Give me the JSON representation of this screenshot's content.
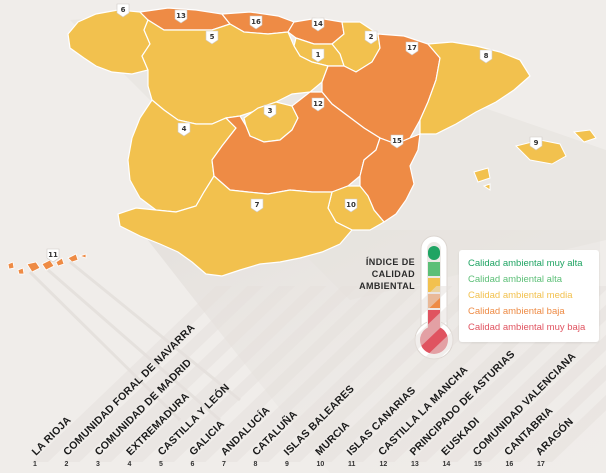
{
  "legend": {
    "title_lines": [
      "ÍNDICE DE",
      "CALIDAD",
      "AMBIENTAL"
    ],
    "items": [
      {
        "label": "Calidad ambiental muy alta",
        "color": "#1fa463"
      },
      {
        "label": "Calidad ambiental alta",
        "color": "#5cbf77"
      },
      {
        "label": "Calidad ambiental media",
        "color": "#f2c14e"
      },
      {
        "label": "Calidad ambiental baja",
        "color": "#ee8b45"
      },
      {
        "label": "Calidad ambiental muy baja",
        "color": "#e05360"
      }
    ]
  },
  "regions": [
    {
      "num": "1",
      "name": "LA RIOJA",
      "quality": "Calidad ambiental media"
    },
    {
      "num": "2",
      "name": "COMUNIDAD FORAL DE NAVARRA",
      "quality": "Calidad ambiental media"
    },
    {
      "num": "3",
      "name": "COMUNIDAD DE MADRID",
      "quality": "Calidad ambiental media"
    },
    {
      "num": "4",
      "name": "EXTREMADURA",
      "quality": "Calidad ambiental media"
    },
    {
      "num": "5",
      "name": "CASTILLA Y LEÓN",
      "quality": "Calidad ambiental media"
    },
    {
      "num": "6",
      "name": "GALICIA",
      "quality": "Calidad ambiental media"
    },
    {
      "num": "7",
      "name": "ANDALUCÍA",
      "quality": "Calidad ambiental media"
    },
    {
      "num": "8",
      "name": "CATALUÑA",
      "quality": "Calidad ambiental media"
    },
    {
      "num": "9",
      "name": "ISLAS BALEARES",
      "quality": "Calidad ambiental media"
    },
    {
      "num": "10",
      "name": "MURCIA",
      "quality": "Calidad ambiental media"
    },
    {
      "num": "11",
      "name": "ISLAS CANARIAS",
      "quality": "Calidad ambiental baja"
    },
    {
      "num": "12",
      "name": "CASTILLA LA MANCHA",
      "quality": "Calidad ambiental baja"
    },
    {
      "num": "13",
      "name": "PRINCIPADO DE ASTURIAS",
      "quality": "Calidad ambiental baja"
    },
    {
      "num": "14",
      "name": "EUSKADI",
      "quality": "Calidad ambiental baja"
    },
    {
      "num": "15",
      "name": "COMUNIDAD VALENCIANA",
      "quality": "Calidad ambiental baja"
    },
    {
      "num": "16",
      "name": "CANTABRIA",
      "quality": "Calidad ambiental baja"
    },
    {
      "num": "17",
      "name": "ARAGÓN",
      "quality": "Calidad ambiental baja"
    }
  ]
}
